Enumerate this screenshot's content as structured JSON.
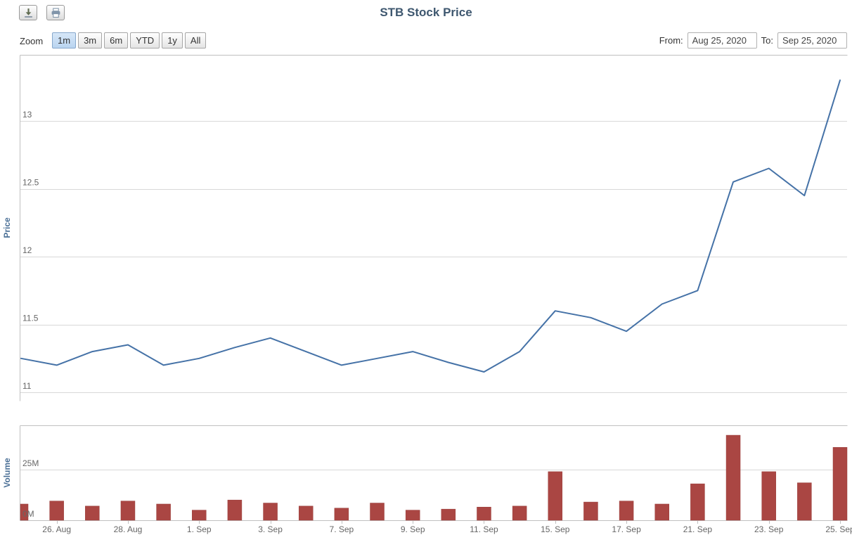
{
  "header": {
    "title": "STB Stock Price"
  },
  "toolbar": {
    "icons": [
      "download-icon",
      "print-icon"
    ]
  },
  "range_selector": {
    "zoom_label": "Zoom",
    "buttons": [
      {
        "label": "1m",
        "active": true
      },
      {
        "label": "3m",
        "active": false
      },
      {
        "label": "6m",
        "active": false
      },
      {
        "label": "YTD",
        "active": false
      },
      {
        "label": "1y",
        "active": false
      },
      {
        "label": "All",
        "active": false
      }
    ],
    "from_label": "From:",
    "from_value": "Aug 25, 2020",
    "to_label": "To:",
    "to_value": "Sep 25, 2020"
  },
  "colors": {
    "line_blue": "#4572A7",
    "bar_red": "#AA4643",
    "title": "#3E576F",
    "grid": "#D8D8D8",
    "axis_line": "#C0C0C0",
    "tick_label": "#666666",
    "axis_title": "#4A6F96"
  },
  "chart_data": [
    {
      "type": "line",
      "pane": "price",
      "title": "STB Stock Price",
      "ylabel": "Price",
      "series_name": "STB",
      "x": [
        "Aug 25",
        "Aug 26",
        "Aug 27",
        "Aug 28",
        "Aug 31",
        "Sep 1",
        "Sep 2",
        "Sep 3",
        "Sep 4",
        "Sep 7",
        "Sep 8",
        "Sep 9",
        "Sep 10",
        "Sep 11",
        "Sep 14",
        "Sep 15",
        "Sep 16",
        "Sep 17",
        "Sep 18",
        "Sep 21",
        "Sep 22",
        "Sep 23",
        "Sep 24",
        "Sep 25"
      ],
      "values": [
        11.25,
        11.2,
        11.3,
        11.35,
        11.2,
        11.25,
        11.33,
        11.4,
        11.3,
        11.2,
        11.25,
        11.3,
        11.22,
        11.15,
        11.3,
        11.6,
        11.55,
        11.45,
        11.65,
        11.75,
        12.55,
        12.65,
        12.45,
        13.3
      ],
      "ylim": [
        11,
        13.5
      ],
      "yticks": [
        11,
        11.5,
        12,
        12.5,
        13
      ],
      "ytick_labels": [
        "11",
        "11.5",
        "12",
        "12.5",
        "13"
      ],
      "xtick_indices": [
        1,
        3,
        5,
        7,
        9,
        11,
        13,
        15,
        17,
        19,
        21,
        23
      ],
      "xtick_labels": [
        "26. Aug",
        "28. Aug",
        "1. Sep",
        "3. Sep",
        "7. Sep",
        "9. Sep",
        "11. Sep",
        "15. Sep",
        "17. Sep",
        "21. Sep",
        "23. Sep",
        "25. Sep"
      ],
      "grid": true,
      "legend": false
    },
    {
      "type": "bar",
      "pane": "volume",
      "ylabel": "Volume",
      "series_name": "Volume",
      "values_millions": [
        8,
        9.5,
        7,
        9.5,
        8,
        5,
        10,
        8.5,
        7,
        6,
        8.5,
        5,
        5.5,
        6.5,
        7,
        24,
        9,
        9.5,
        8,
        18,
        42,
        24,
        18.5,
        36
      ],
      "ylim_millions": [
        0,
        47
      ],
      "yticks_millions": [
        0,
        25
      ],
      "ytick_labels": [
        "0M",
        "25M"
      ],
      "grid": true,
      "legend": false
    }
  ]
}
